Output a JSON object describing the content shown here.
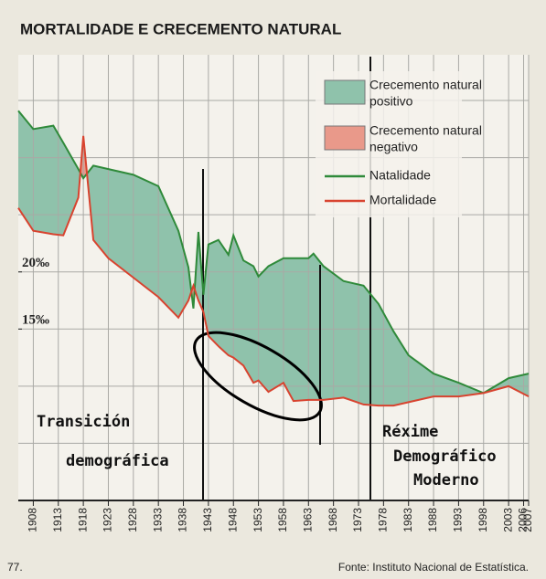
{
  "chart_data": {
    "type": "line",
    "title": "MORTALIDADE E CRECEMENTO NATURAL",
    "x": [
      1905,
      1908,
      1912,
      1914,
      1917,
      1918,
      1920,
      1923,
      1928,
      1933,
      1937,
      1939,
      1940,
      1941,
      1942,
      1943,
      1945,
      1947,
      1948,
      1950,
      1952,
      1953,
      1955,
      1958,
      1960,
      1963,
      1964,
      1966,
      1970,
      1974,
      1977,
      1980,
      1983,
      1988,
      1993,
      1998,
      2003,
      2007
    ],
    "series": [
      {
        "name": "Natalidade",
        "color": "#2f8a3a",
        "values": [
          34.1,
          32.5,
          32.8,
          31.3,
          29,
          28.2,
          29.3,
          29,
          28.5,
          27.5,
          23.6,
          20.4,
          16.8,
          23.5,
          18,
          22.4,
          22.8,
          21.5,
          23.2,
          21,
          20.5,
          19.6,
          20.5,
          21.2,
          21.2,
          21.2,
          21.6,
          20.5,
          19.2,
          18.8,
          17.2,
          14.8,
          12.7,
          11.1,
          10.3,
          9.4,
          10.7,
          11.1
        ]
      },
      {
        "name": "Mortalidade",
        "color": "#d8432f",
        "values": [
          25.6,
          23.6,
          23.3,
          23.2,
          26.5,
          31.9,
          22.8,
          21.2,
          19.5,
          17.8,
          16,
          17.5,
          18.8,
          17.5,
          16.5,
          14.4,
          13.5,
          12.7,
          12.5,
          11.8,
          10.3,
          10.5,
          9.5,
          10.3,
          8.7,
          8.8,
          8.8,
          8.8,
          9,
          8.4,
          8.3,
          8.3,
          8.6,
          9.1,
          9.1,
          9.4,
          10,
          9.1
        ]
      }
    ],
    "fill_legend": [
      {
        "name": "Crecemento natural positivo",
        "color": "#8fc2ab"
      },
      {
        "name": "Crecemento natural negativo",
        "color": "#e9998a"
      }
    ],
    "xlim": [
      1905,
      2007
    ],
    "xticks": [
      1908,
      1913,
      1918,
      1923,
      1928,
      1933,
      1938,
      1943,
      1948,
      1953,
      1958,
      1963,
      1968,
      1973,
      1978,
      1983,
      1988,
      1993,
      1998,
      2003,
      2006,
      2007
    ],
    "ylim": [
      0,
      39
    ],
    "yticks": [
      {
        "value": 15,
        "label": "15‰"
      },
      {
        "value": 20,
        "label": "20‰"
      }
    ],
    "ygrid": [
      5,
      10,
      15,
      20,
      25,
      30,
      35
    ],
    "grid": true,
    "legend": "top-right",
    "annotations": [
      "Transición",
      "demográfica",
      "Réxime",
      "Demográfico",
      "Moderno"
    ],
    "source": "Fonte: Instituto Nacional de Estatística.",
    "page_number": "77."
  }
}
